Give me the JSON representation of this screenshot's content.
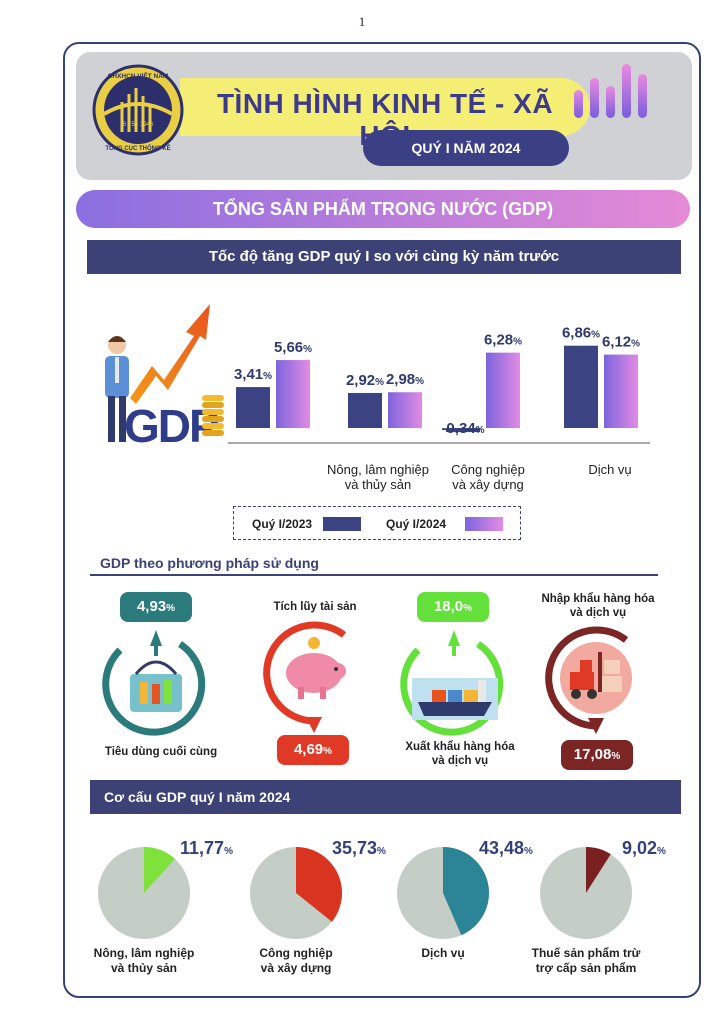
{
  "page_number": "1",
  "header": {
    "title": "TÌNH HÌNH KINH TẾ - XÃ HỘI",
    "subtitle": "QUÝ I NĂM 2024",
    "logo_text_top": "CHXHCN VIỆT NAM",
    "logo_text_date": "6 - 5 - 1946",
    "logo_text_bottom": "TỔNG CỤC THỐNG KÊ"
  },
  "banner": "TỔNG SẢN PHẨM TRONG NƯỚC (GDP)",
  "growth_chart": {
    "header": "Tốc độ tăng GDP quý I so với cùng kỳ năm trước",
    "gdp_word": "GDP",
    "legend": [
      "Quý I/2023",
      "Quý I/2024"
    ]
  },
  "chart_data": [
    {
      "type": "bar",
      "title": "Tốc độ tăng GDP quý I so với cùng kỳ năm trước",
      "categories": [
        "",
        "Nông, lâm nghiệp và thủy sản",
        "Công nghiệp và xây dựng",
        "Dịch vụ"
      ],
      "category_lines": [
        [],
        [
          "Nông, lâm nghiệp",
          "và thủy sản"
        ],
        [
          "Công nghiệp",
          "và xây dựng"
        ],
        [
          "Dịch vụ"
        ]
      ],
      "series": [
        {
          "name": "Quý I/2023",
          "values": [
            3.41,
            2.92,
            -0.34,
            6.86
          ],
          "labels": [
            "3,41",
            "2,92",
            "-0,34",
            "6,86"
          ],
          "color": "#3b4383"
        },
        {
          "name": "Quý I/2024",
          "values": [
            5.66,
            2.98,
            6.28,
            6.12
          ],
          "labels": [
            "5,66",
            "2,98",
            "6,28",
            "6,12"
          ],
          "color": "#b676e6"
        }
      ],
      "unit": "%",
      "legend_position": "bottom"
    },
    {
      "type": "pie",
      "title": "Cơ cấu GDP quý I năm 2024",
      "unit": "%",
      "slices": [
        {
          "label": "Nông, lâm nghiệp và thủy sản",
          "lines": [
            "Nông, lâm nghiệp",
            "và thủy sản"
          ],
          "value": 11.77,
          "text": "11,77",
          "color": "#7fe23a"
        },
        {
          "label": "Công nghiệp và xây dựng",
          "lines": [
            "Công nghiệp",
            "và xây dựng"
          ],
          "value": 35.73,
          "text": "35,73",
          "color": "#d8341f"
        },
        {
          "label": "Dịch vụ",
          "lines": [
            "Dịch vụ"
          ],
          "value": 43.48,
          "text": "43,48",
          "color": "#2b8596"
        },
        {
          "label": "Thuế sản phẩm trừ trợ cấp sản phẩm",
          "lines": [
            "Thuế sản phẩm trừ",
            "trợ cấp sản phẩm"
          ],
          "value": 9.02,
          "text": "9,02",
          "color": "#7b2020"
        }
      ],
      "remainder_color": "#c4cdc6"
    }
  ],
  "usage": {
    "title": "GDP theo phương pháp sử dụng",
    "items": [
      {
        "label": "Tiêu dùng cuối cùng",
        "value": "4,93",
        "unit": "%",
        "color": "#2b7a7c"
      },
      {
        "label": "Tích lũy tài sản",
        "value": "4,69",
        "unit": "%",
        "color": "#e03a26"
      },
      {
        "label_line1": "Xuất khẩu hàng hóa",
        "label_line2": "và dịch vụ",
        "value": "18,0",
        "unit": "%",
        "color": "#64e03a"
      },
      {
        "label_line1": "Nhập khẩu hàng hóa",
        "label_line2": "và dịch vụ",
        "value": "17,08",
        "unit": "%",
        "color": "#7b2525"
      }
    ]
  },
  "structure": {
    "title": "Cơ cấu GDP quý I năm 2024"
  }
}
